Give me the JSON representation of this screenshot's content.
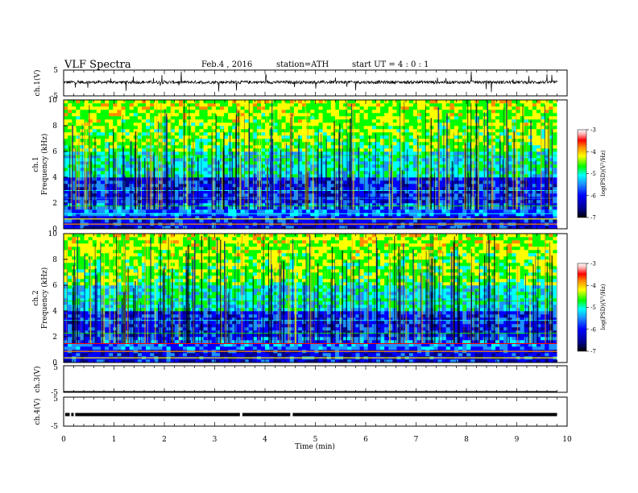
{
  "header": {
    "title": "VLF  Spectra",
    "date": "Feb.4 , 2016",
    "station": "station=ATH",
    "start": "start  UT  =  4 : 0 : 1"
  },
  "colors": {
    "spectrogram": [
      "#000000",
      "#00008b",
      "#0000ff",
      "#1e90ff",
      "#00ffff",
      "#00ff00",
      "#ffff00",
      "#ff8c00",
      "#ff0000",
      "#ffb0b0",
      "#ffffff"
    ],
    "trace": "#000000"
  },
  "chart_data": [
    {
      "type": "line",
      "panel": "ch1",
      "ylabel": "ch.1(V)",
      "ylim": [
        -5,
        5
      ],
      "yticks": [
        "5",
        "-5"
      ],
      "description_values": {
        "baseline_v": 0.3,
        "noise_amplitude_v": 0.6,
        "spike_amplitude_v": 4.0
      },
      "x_range_min": [
        0,
        9.8
      ]
    },
    {
      "type": "heatmap",
      "panel": "ch1_spectrogram",
      "ylabel_top": "ch.1",
      "ylabel": "Frequency  (kHz)",
      "ylim": [
        0,
        10
      ],
      "yticks": [
        "0",
        "2",
        "4",
        "6",
        "8",
        "10"
      ],
      "colorbar": {
        "label": "log(PSD)(V²/Hz)",
        "range": [
          -7,
          -3
        ],
        "ticks": [
          "-3",
          "-4",
          "-5",
          "-6",
          "-7"
        ]
      },
      "x_range_min": [
        0,
        9.8
      ]
    },
    {
      "type": "heatmap",
      "panel": "ch2_spectrogram",
      "ylabel_top": "ch.2",
      "ylabel": "Frequency  (kHz)",
      "ylim": [
        0,
        10
      ],
      "yticks": [
        "0",
        "2",
        "4",
        "6",
        "8",
        "10"
      ],
      "colorbar": {
        "label": "log(PSD)(V²/Hz)",
        "range": [
          -7,
          -3
        ],
        "ticks": [
          "-3",
          "-4",
          "-5",
          "-6",
          "-7"
        ]
      },
      "x_range_min": [
        0,
        9.8
      ]
    },
    {
      "type": "line",
      "panel": "ch3",
      "ylabel": "ch.3(V)",
      "ylim": [
        -5,
        5
      ],
      "yticks": [
        "5",
        "-5"
      ],
      "description_values": {
        "constant_v": -5
      },
      "x_range_min": [
        0,
        9.8
      ]
    },
    {
      "type": "line",
      "panel": "ch4",
      "ylabel": "ch.4(V)",
      "ylim": [
        -5,
        5
      ],
      "yticks": [
        "5",
        "-5"
      ],
      "description_values": {
        "constant_v": -1
      },
      "gaps_min": [
        0.12,
        0.2,
        3.5,
        4.5
      ],
      "x_range_min": [
        0,
        9.8
      ]
    }
  ],
  "xaxis": {
    "label": "Time  (min)",
    "ticks": [
      "0",
      "1",
      "2",
      "3",
      "4",
      "5",
      "6",
      "7",
      "8",
      "9",
      "10"
    ],
    "xlim": [
      0,
      10
    ]
  }
}
